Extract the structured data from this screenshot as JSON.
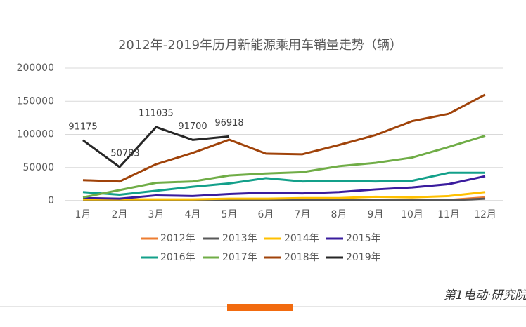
{
  "chart_data": {
    "type": "line",
    "title": "2012年-2019年历月新能源乘用车销量走势（辆）",
    "categories": [
      "1月",
      "2月",
      "3月",
      "4月",
      "5月",
      "6月",
      "7月",
      "8月",
      "9月",
      "10月",
      "11月",
      "12月"
    ],
    "ylim": [
      0,
      200000
    ],
    "yticks": [
      0,
      50000,
      100000,
      150000,
      200000
    ],
    "grid": true,
    "series": [
      {
        "name": "2012年",
        "color": "#ed7d31",
        "values": [
          1000,
          1000,
          1000,
          1000,
          1000,
          1000,
          1000,
          1000,
          1000,
          1000,
          1000,
          5000
        ]
      },
      {
        "name": "2013年",
        "color": "#595959",
        "values": [
          500,
          500,
          500,
          500,
          500,
          500,
          500,
          500,
          500,
          500,
          500,
          3000
        ]
      },
      {
        "name": "2014年",
        "color": "#ffc000",
        "values": [
          2000,
          2000,
          2000,
          2000,
          3000,
          3000,
          4000,
          4000,
          6000,
          5000,
          7000,
          13000
        ]
      },
      {
        "name": "2015年",
        "color": "#3a1c9e",
        "values": [
          4000,
          3000,
          8000,
          7000,
          10000,
          12000,
          11000,
          13000,
          17000,
          20000,
          25000,
          37000
        ]
      },
      {
        "name": "2016年",
        "color": "#13a08a",
        "values": [
          13000,
          9000,
          15000,
          21000,
          26000,
          34000,
          29000,
          30000,
          29000,
          30000,
          42000,
          42000
        ]
      },
      {
        "name": "2017年",
        "color": "#70ad47",
        "values": [
          5000,
          16000,
          27000,
          29000,
          38000,
          41000,
          43000,
          52000,
          57000,
          65000,
          81000,
          98000
        ]
      },
      {
        "name": "2018年",
        "color": "#a0430a",
        "values": [
          31000,
          29000,
          55000,
          72000,
          92000,
          71000,
          70000,
          84000,
          99000,
          120000,
          131000,
          160000
        ]
      },
      {
        "name": "2019年",
        "color": "#262626",
        "values": [
          91175,
          50783,
          111035,
          91700,
          96918,
          null,
          null,
          null,
          null,
          null,
          null,
          null
        ],
        "data_labels": true
      }
    ]
  },
  "footer": {
    "logo": "第1电动·研究院"
  }
}
